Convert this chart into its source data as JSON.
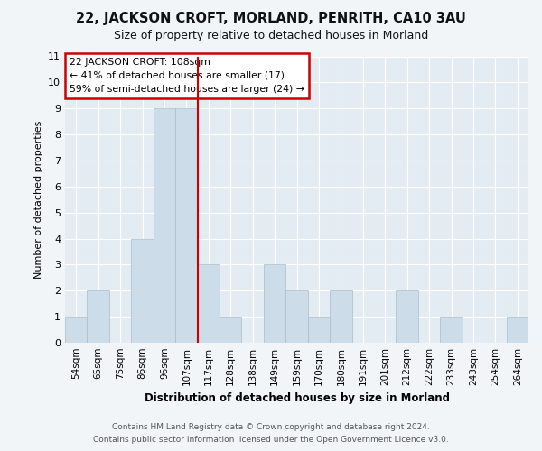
{
  "title1": "22, JACKSON CROFT, MORLAND, PENRITH, CA10 3AU",
  "title2": "Size of property relative to detached houses in Morland",
  "xlabel": "Distribution of detached houses by size in Morland",
  "ylabel": "Number of detached properties",
  "categories": [
    "54sqm",
    "65sqm",
    "75sqm",
    "86sqm",
    "96sqm",
    "107sqm",
    "117sqm",
    "128sqm",
    "138sqm",
    "149sqm",
    "159sqm",
    "170sqm",
    "180sqm",
    "191sqm",
    "201sqm",
    "212sqm",
    "222sqm",
    "233sqm",
    "243sqm",
    "254sqm",
    "264sqm"
  ],
  "values": [
    1,
    2,
    0,
    4,
    9,
    9,
    3,
    1,
    0,
    3,
    2,
    1,
    2,
    0,
    0,
    2,
    0,
    1,
    0,
    0,
    1
  ],
  "bar_color": "#ccdce8",
  "bar_edge_color": "#aabccc",
  "vline_x": 5.5,
  "ylim": [
    0,
    11
  ],
  "yticks": [
    0,
    1,
    2,
    3,
    4,
    5,
    6,
    7,
    8,
    9,
    10,
    11
  ],
  "annotation_title": "22 JACKSON CROFT: 108sqm",
  "annotation_line1": "← 41% of detached houses are smaller (17)",
  "annotation_line2": "59% of semi-detached houses are larger (24) →",
  "footer1": "Contains HM Land Registry data © Crown copyright and database right 2024.",
  "footer2": "Contains public sector information licensed under the Open Government Licence v3.0.",
  "bg_color": "#f2f5f8",
  "plot_bg_color": "#e4ecf3",
  "grid_color": "#ffffff",
  "vline_color": "#cc0000",
  "annotation_box_color": "#ffffff",
  "annotation_box_edge": "#cc0000",
  "title1_fontsize": 10.5,
  "title2_fontsize": 9,
  "ylabel_fontsize": 8,
  "xlabel_fontsize": 8.5,
  "tick_fontsize": 7.5,
  "ytick_fontsize": 8,
  "ann_fontsize": 7.8,
  "footer_fontsize": 6.5
}
